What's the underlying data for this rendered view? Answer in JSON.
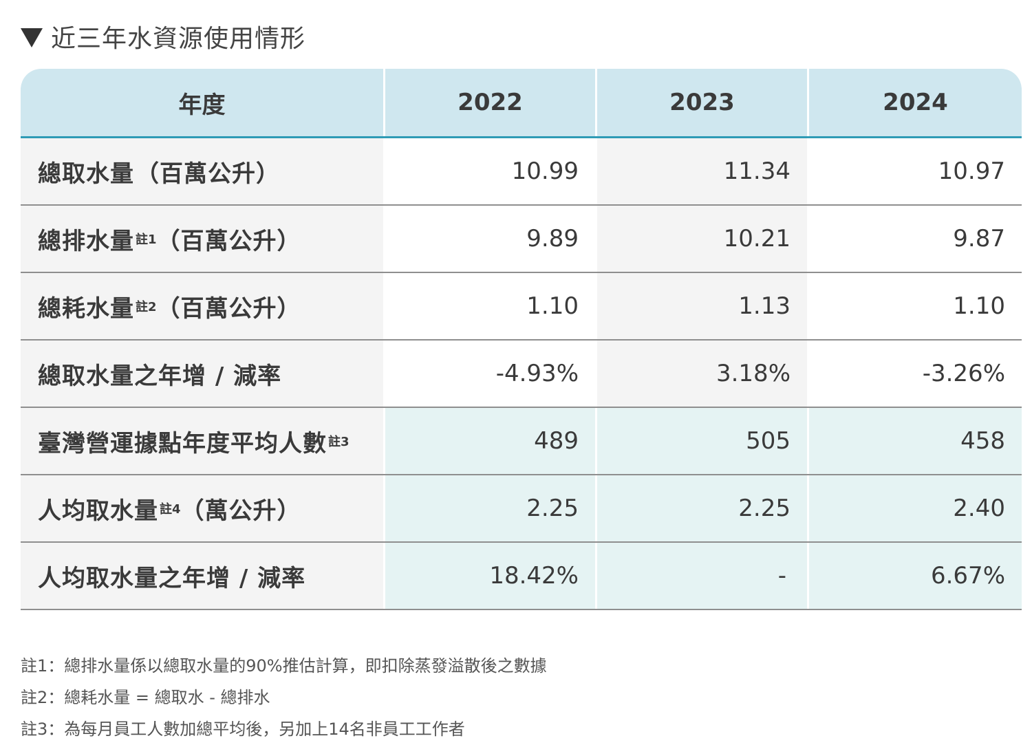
{
  "title": "近三年水資源使用情形",
  "table": {
    "header": [
      "年度",
      "2022",
      "2023",
      "2024"
    ],
    "rows": [
      {
        "label": "總取水量",
        "note": "",
        "unit": "（百萬公升）",
        "values": [
          "10.99",
          "11.34",
          "10.97"
        ]
      },
      {
        "label": "總排水量",
        "note": "註1",
        "unit": "（百萬公升）",
        "values": [
          "9.89",
          "10.21",
          "9.87"
        ]
      },
      {
        "label": "總耗水量",
        "note": "註2",
        "unit": "（百萬公升）",
        "values": [
          "1.10",
          "1.13",
          "1.10"
        ]
      },
      {
        "label": "總取水量之年增 / 減率",
        "note": "",
        "unit": "",
        "values": [
          "-4.93%",
          "3.18%",
          "-3.26%"
        ]
      },
      {
        "label": "臺灣營運據點年度平均人數",
        "note": "註3",
        "unit": "",
        "values": [
          "489",
          "505",
          "458"
        ]
      },
      {
        "label": "人均取水量",
        "note": "註4",
        "unit": "（萬公升）",
        "values": [
          "2.25",
          "2.25",
          "2.40"
        ]
      },
      {
        "label": "人均取水量之年增 / 減率",
        "note": "",
        "unit": "",
        "values": [
          "18.42%",
          "-",
          "6.67%"
        ]
      }
    ]
  },
  "notes": [
    "註1：總排水量係以總取水量的90%推估計算，即扣除蒸發溢散後之數據",
    "註2：總耗水量 = 總取水 - 總排水",
    "註3：為每月員工人數加總平均後，另加上14名非員工工作者"
  ]
}
